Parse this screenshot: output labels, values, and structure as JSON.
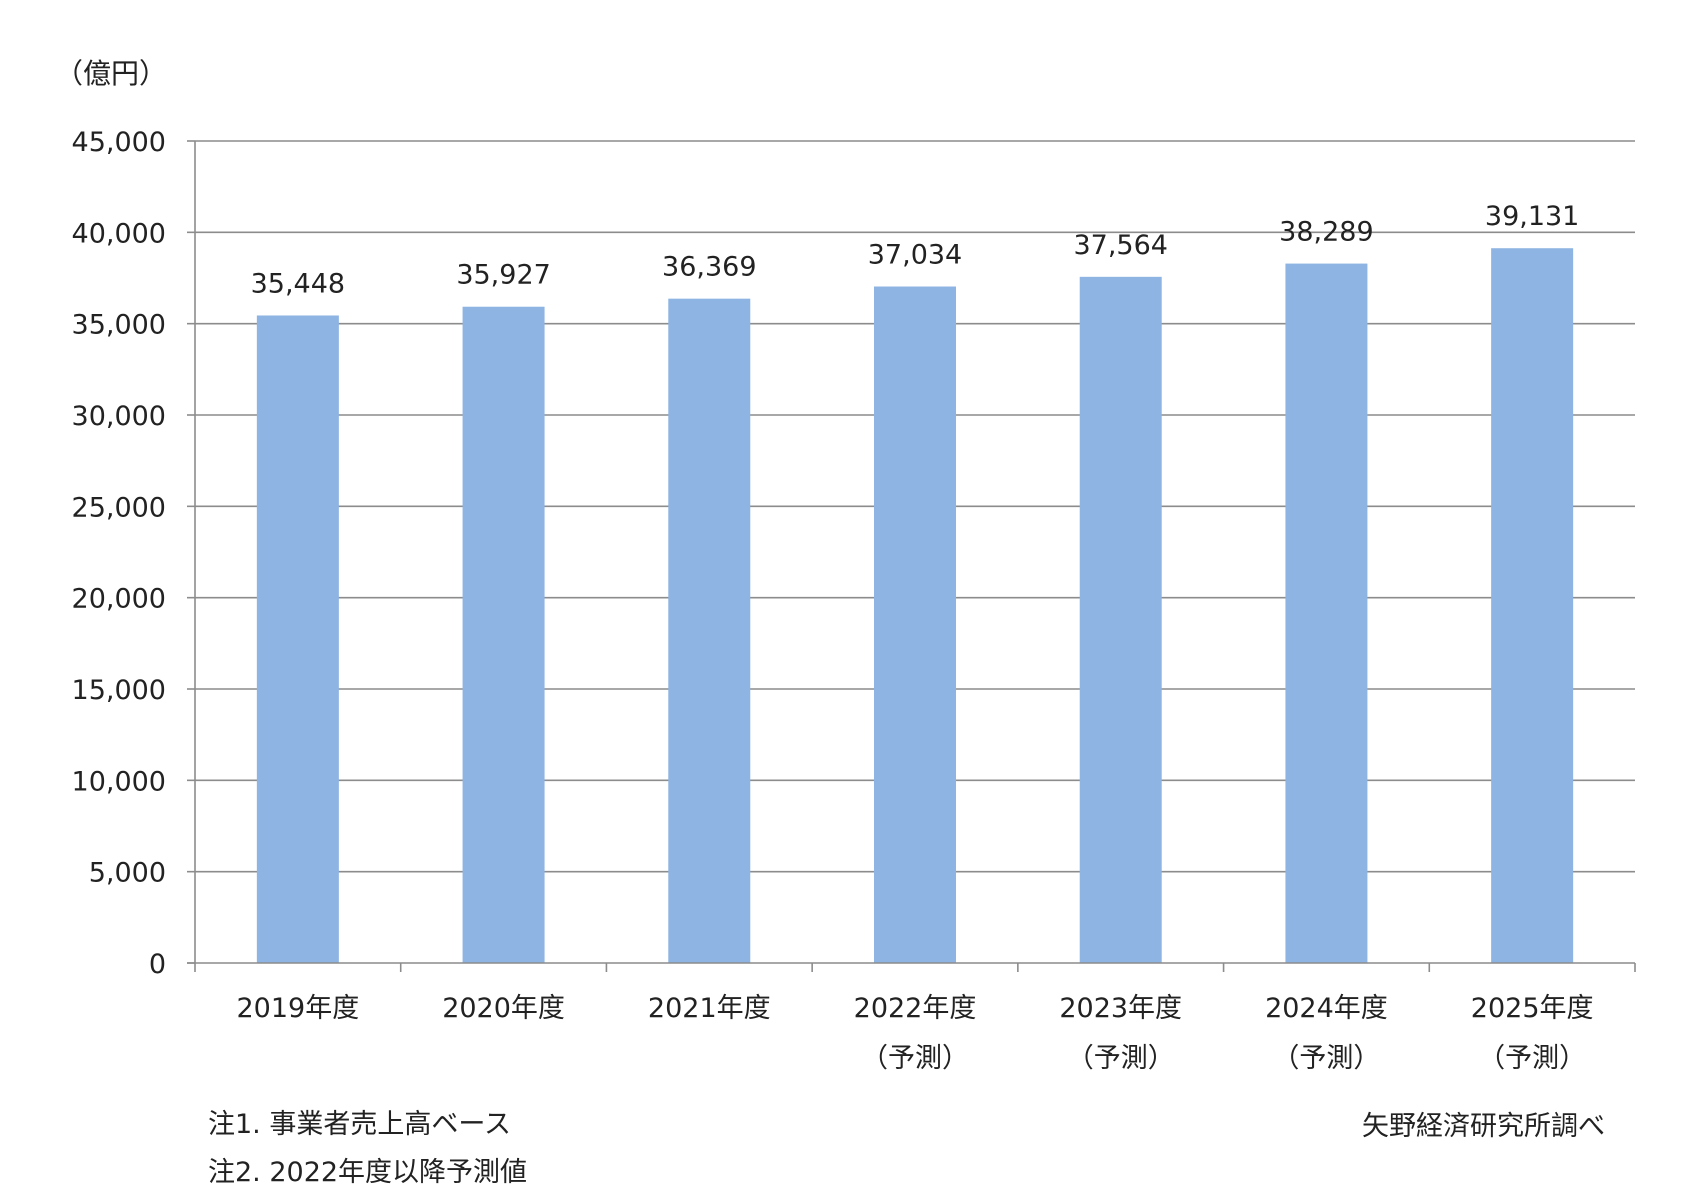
{
  "chart_data": {
    "type": "bar",
    "unit_label": "（億円）",
    "categories": [
      [
        "2019年度"
      ],
      [
        "2020年度"
      ],
      [
        "2021年度"
      ],
      [
        "2022年度",
        "（予測）"
      ],
      [
        "2023年度",
        "（予測）"
      ],
      [
        "2024年度",
        "（予測）"
      ],
      [
        "2025年度",
        "（予測）"
      ]
    ],
    "values": [
      35448,
      35927,
      36369,
      37034,
      37564,
      38289,
      39131
    ],
    "value_labels": [
      "35,448",
      "35,927",
      "36,369",
      "37,034",
      "37,564",
      "38,289",
      "39,131"
    ],
    "ylim": [
      0,
      45000
    ],
    "y_ticks": [
      0,
      5000,
      10000,
      15000,
      20000,
      25000,
      30000,
      35000,
      40000,
      45000
    ],
    "y_tick_labels": [
      "0",
      "5,000",
      "10,000",
      "15,000",
      "20,000",
      "25,000",
      "30,000",
      "35,000",
      "40,000",
      "45,000"
    ],
    "grid": true,
    "legend": false,
    "bar_color": "#8EB4E3"
  },
  "notes": {
    "note1": "注1. 事業者売上高ベース",
    "note2": "注2. 2022年度以降予測値",
    "source": "矢野経済研究所調べ"
  }
}
